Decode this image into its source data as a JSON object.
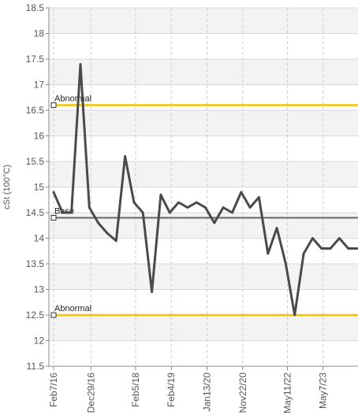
{
  "chart_data": {
    "type": "line",
    "ylabel": "cSt (100°C)",
    "ylim": [
      11.5,
      18.5
    ],
    "y_ticks": [
      "18.5",
      "18",
      "17.5",
      "17",
      "16.5",
      "16",
      "15.5",
      "15",
      "14.5",
      "14",
      "13.5",
      "13",
      "12.5",
      "12",
      "11.5"
    ],
    "x_ticks": [
      "Feb7/16",
      "Dec29/16",
      "Feb5/18",
      "Feb4/19",
      "Jan13/20",
      "Nov22/20",
      "May11/22",
      "May7/23"
    ],
    "grid": true,
    "colors": {
      "series": "#4a4a4a",
      "abnormal": "#f2c300",
      "base": "#666666",
      "band_light": "#f3f3f3",
      "grid": "#d9d9d9"
    },
    "reference_lines": [
      {
        "label": "Abnormal",
        "value": 16.6,
        "color": "#f2c300"
      },
      {
        "label": "Base",
        "value": 14.4,
        "color": "#666666"
      },
      {
        "label": "Abnormal",
        "value": 12.5,
        "color": "#f2c300"
      }
    ],
    "series": [
      {
        "values": [
          14.9,
          14.5,
          14.5,
          17.4,
          14.6,
          14.3,
          14.1,
          13.95,
          15.6,
          14.7,
          14.5,
          12.95,
          14.85,
          14.5,
          14.7,
          14.6,
          14.7,
          14.6,
          14.3,
          14.6,
          14.5,
          14.9,
          14.6,
          14.8,
          13.7,
          14.2,
          13.5,
          12.5,
          13.7,
          14.0,
          13.8,
          13.8,
          14.0,
          13.8,
          13.8
        ]
      }
    ]
  }
}
